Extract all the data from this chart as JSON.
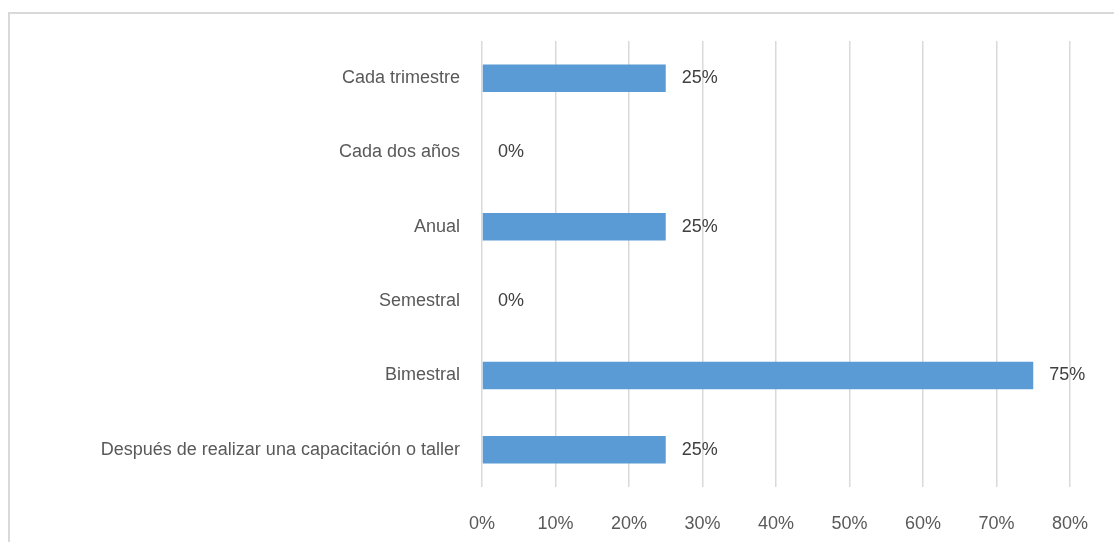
{
  "chart_data": {
    "type": "bar",
    "orientation": "horizontal",
    "categories": [
      "Cada trimestre",
      "Cada dos años",
      "Anual",
      "Semestral",
      "Bimestral",
      "Después de realizar una capacitación o taller"
    ],
    "values": [
      25,
      0,
      25,
      0,
      75,
      25
    ],
    "value_labels": [
      "25%",
      "0%",
      "25%",
      "0%",
      "75%",
      "25%"
    ],
    "color": "#5b9bd5",
    "xlim": [
      0,
      80
    ],
    "xticks": [
      {
        "value": 0,
        "label": "0%"
      },
      {
        "value": 10,
        "label": "10%"
      },
      {
        "value": 20,
        "label": "20%"
      },
      {
        "value": 30,
        "label": "30%"
      },
      {
        "value": 40,
        "label": "40%"
      },
      {
        "value": 50,
        "label": "50%"
      },
      {
        "value": 60,
        "label": "60%"
      },
      {
        "value": 70,
        "label": "70%"
      },
      {
        "value": 80,
        "label": "80%"
      }
    ],
    "grid": "x"
  }
}
